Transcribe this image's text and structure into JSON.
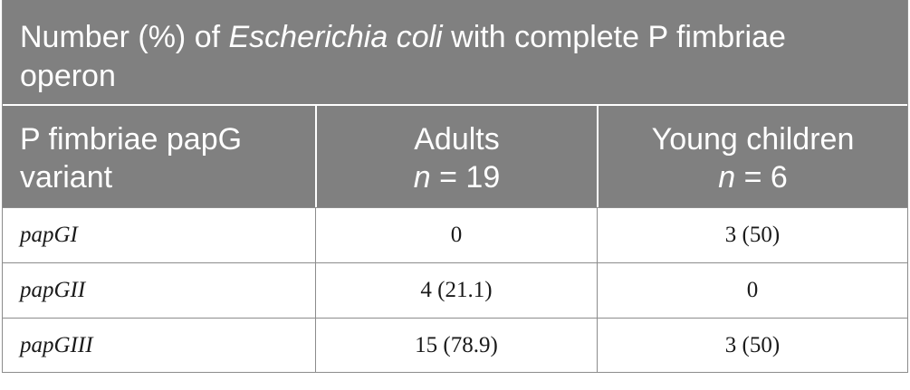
{
  "caption": {
    "prefix": "Number (%) of ",
    "organism": "Escherichia coli",
    "suffix": " with complete P fimbriae operon"
  },
  "header": {
    "col1": [
      "P fimbriae papG",
      "variant"
    ],
    "col2": {
      "label": "Adults",
      "n_symbol": "n",
      "n_value": " = 19"
    },
    "col3": {
      "label": "Young children",
      "n_symbol": "n",
      "n_value": " = 6"
    }
  },
  "rows": [
    {
      "variant": "papGI",
      "adults": "0",
      "children": "3 (50)"
    },
    {
      "variant": "papGII",
      "adults": "4 (21.1)",
      "children": "0"
    },
    {
      "variant": "papGIII",
      "adults": "15 (78.9)",
      "children": "3 (50)"
    }
  ]
}
